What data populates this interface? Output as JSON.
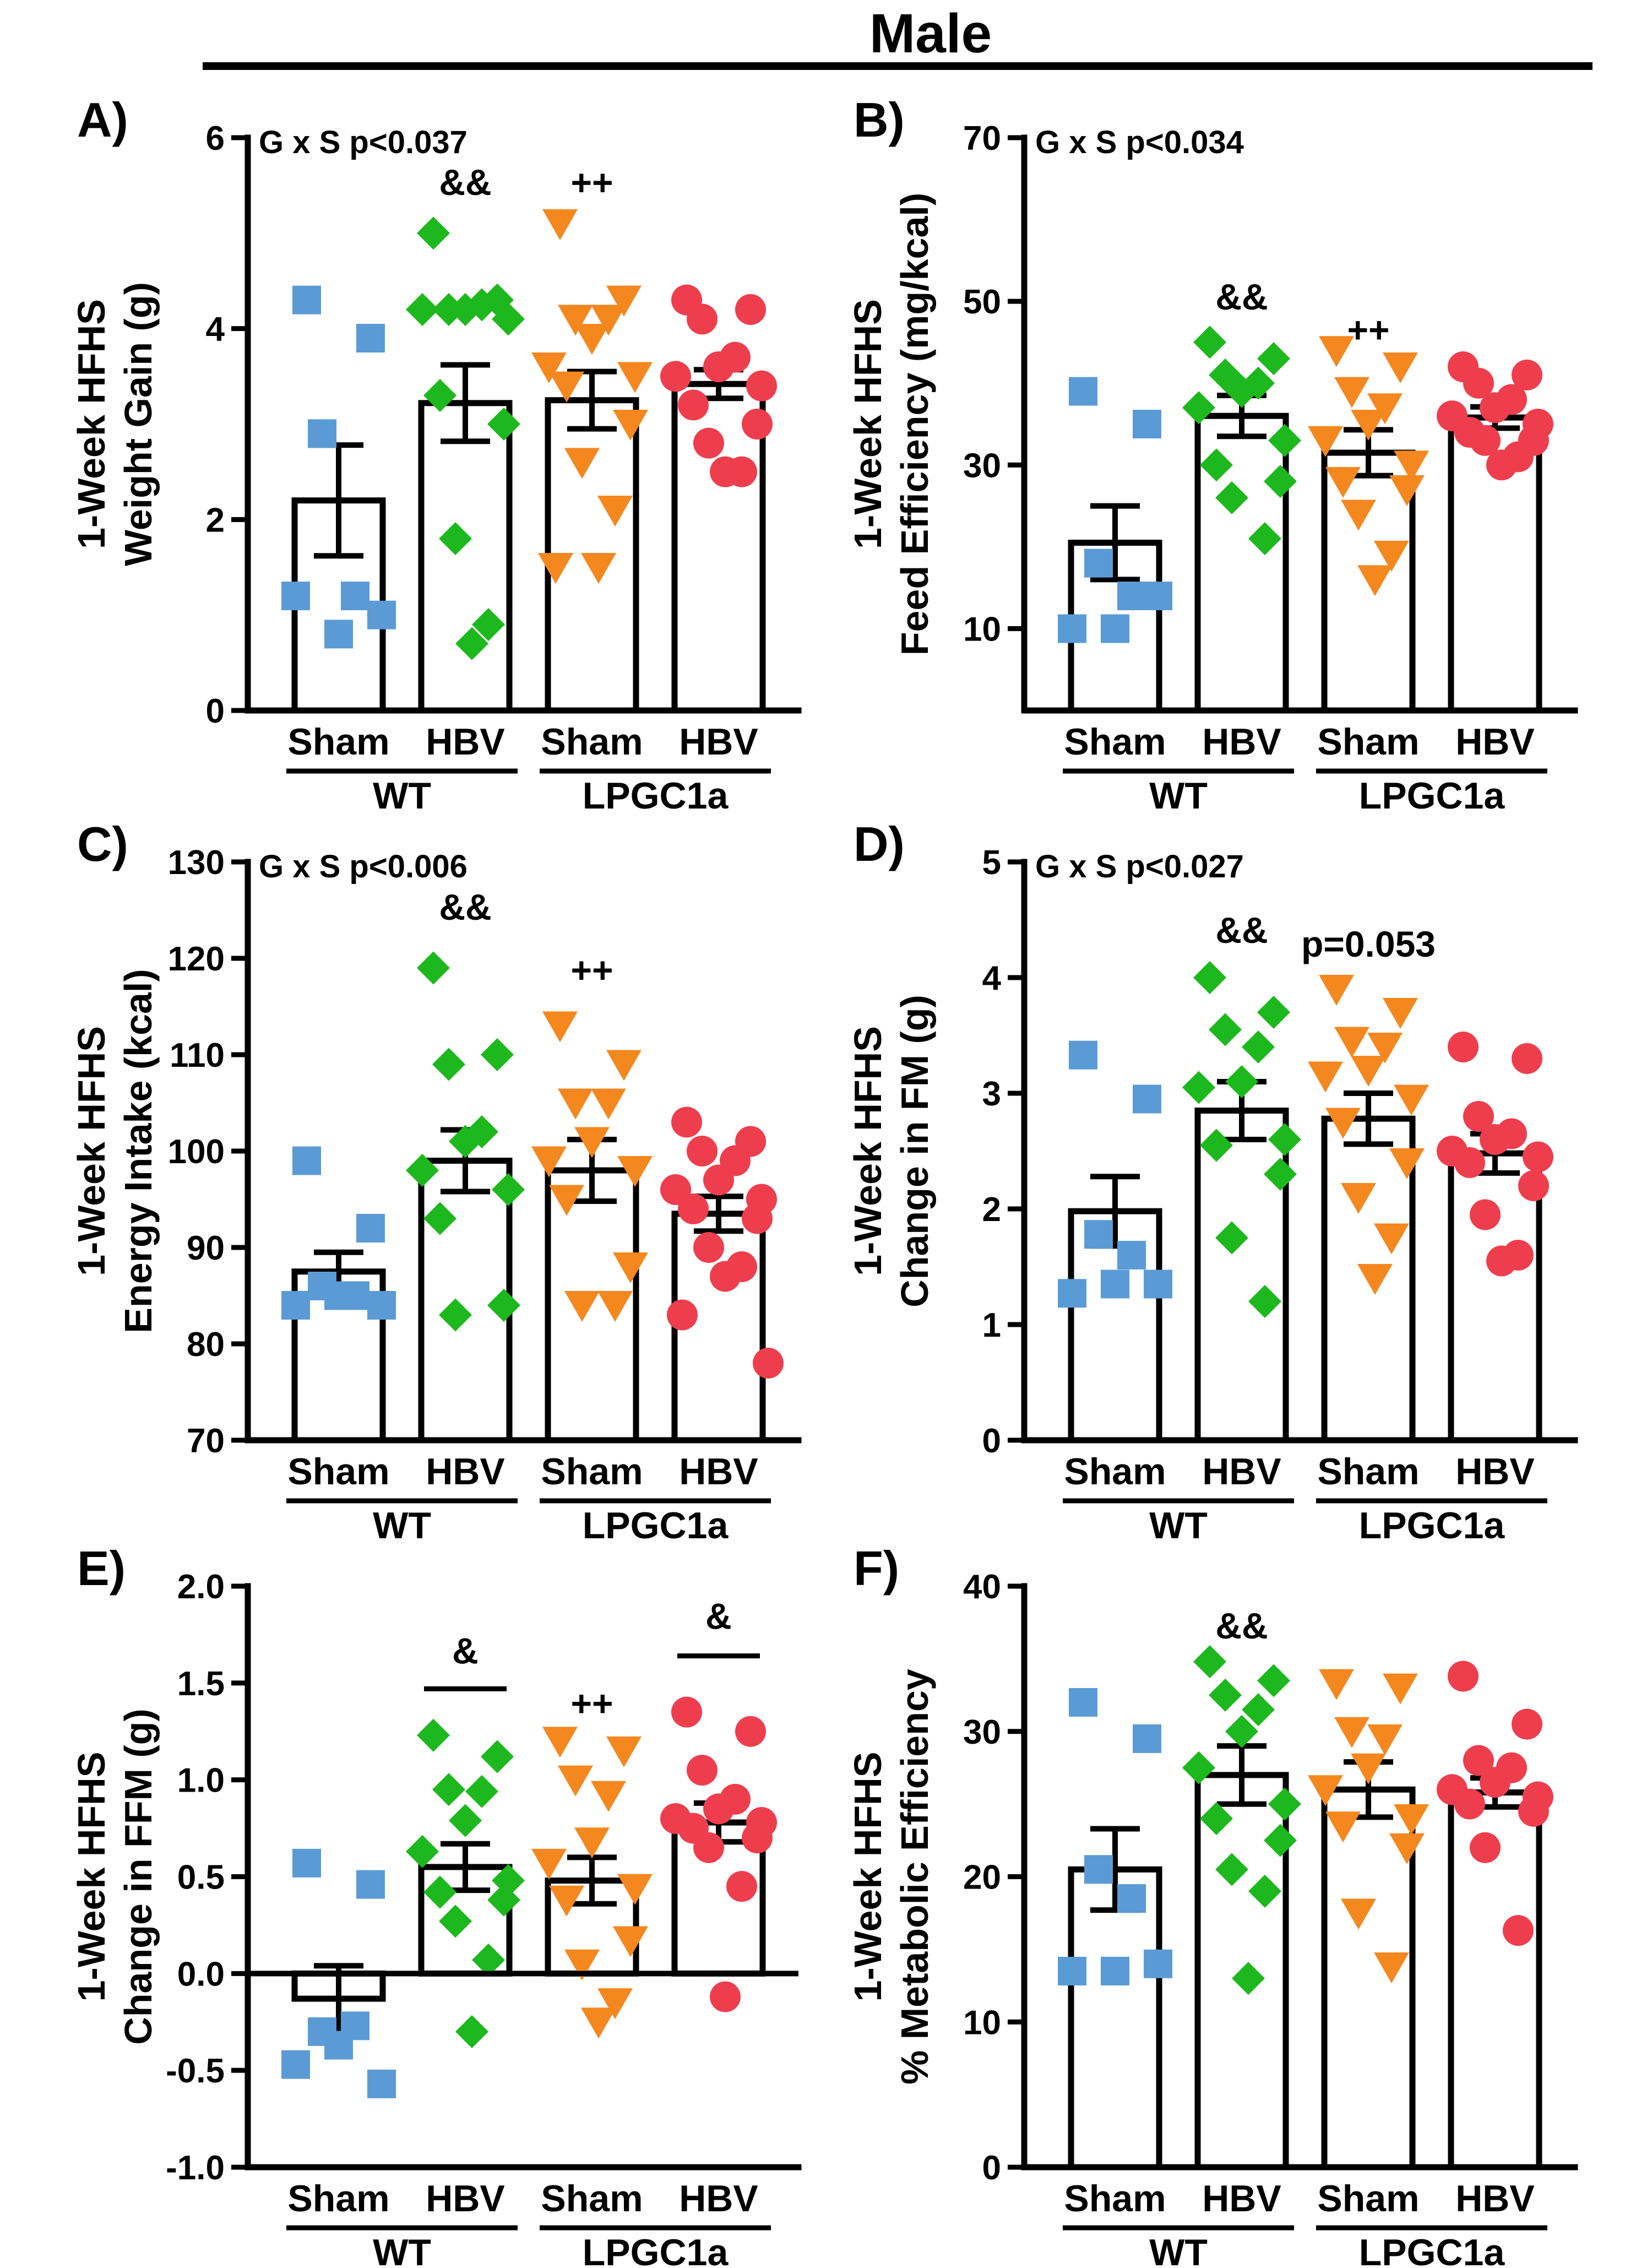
{
  "figure_title": "Male",
  "categories": [
    "Sham",
    "HBV",
    "Sham",
    "HBV"
  ],
  "groups": [
    "WT",
    "LPGC1a"
  ],
  "series_colors": [
    "#5B9BD5",
    "#1DB81D",
    "#F5871F",
    "#EE3E4E"
  ],
  "series_markers": [
    "square",
    "diamond",
    "triangle-down",
    "circle"
  ],
  "chart_data": [
    {
      "type": "bar",
      "letter": "A)",
      "title": "",
      "ylabel_lines": [
        "1-Week HFHS",
        "Weight Gain  (g)"
      ],
      "ylim": [
        0,
        6
      ],
      "yticks": [
        0,
        2,
        4,
        6
      ],
      "stat": "G x S p<0.037",
      "categories": [
        "Sham",
        "HBV",
        "Sham",
        "HBV"
      ],
      "groups": [
        "WT",
        "LPGC1a"
      ],
      "means": [
        2.2,
        3.22,
        3.25,
        3.42
      ],
      "sems": [
        0.58,
        0.4,
        0.3,
        0.15
      ],
      "points": [
        [
          4.3,
          3.9,
          2.9,
          1.2,
          0.8,
          1.2,
          1.0
        ],
        [
          5.0,
          4.3,
          4.2,
          4.25,
          4.2,
          4.2,
          4.1,
          3.3,
          3.0,
          1.8,
          0.9,
          0.7
        ],
        [
          5.1,
          4.3,
          4.1,
          4.1,
          3.9,
          3.6,
          3.5,
          3.4,
          3.0,
          2.6,
          2.1,
          1.5,
          1.5
        ],
        [
          4.3,
          4.2,
          4.1,
          3.7,
          3.6,
          3.5,
          3.4,
          3.2,
          3.0,
          2.8,
          2.5,
          2.5
        ]
      ],
      "marks": [
        {
          "category_index": 1,
          "text": "&&",
          "y": 5.4
        },
        {
          "category_index": 2,
          "text": "++",
          "y": 5.4
        }
      ]
    },
    {
      "type": "bar",
      "letter": "B)",
      "title": "",
      "ylabel_lines": [
        "1-Week HFHS",
        "Feed Efficiency (mg/kcal)"
      ],
      "ylim": [
        0,
        70
      ],
      "yticks": [
        10,
        30,
        50,
        70
      ],
      "stat": "G x S p<0.034",
      "categories": [
        "Sham",
        "HBV",
        "Sham",
        "HBV"
      ],
      "groups": [
        "WT",
        "LPGC1a"
      ],
      "means": [
        20.5,
        36,
        31.5,
        35.8
      ],
      "sems": [
        4.5,
        2.5,
        2.8,
        1.3
      ],
      "points": [
        [
          39,
          35,
          18,
          14,
          10,
          10,
          14
        ],
        [
          45,
          43,
          41,
          40,
          39,
          37,
          33,
          30,
          28,
          26,
          21
        ],
        [
          44,
          42,
          39,
          37,
          35,
          33,
          30,
          28,
          27,
          24,
          19,
          16
        ],
        [
          42,
          41,
          40,
          38,
          37,
          36,
          35,
          34,
          33,
          33,
          31,
          30
        ]
      ],
      "marks": [
        {
          "category_index": 1,
          "text": "&&",
          "y": 49
        },
        {
          "category_index": 2,
          "text": "++",
          "y": 45
        }
      ]
    },
    {
      "type": "bar",
      "letter": "C)",
      "title": "",
      "ylabel_lines": [
        "1-Week HFHS",
        "Energy Intake (kcal)"
      ],
      "ylim": [
        70,
        130
      ],
      "yticks": [
        70,
        80,
        90,
        100,
        110,
        120,
        130
      ],
      "stat": "G x S p<0.006",
      "categories": [
        "Sham",
        "HBV",
        "Sham",
        "HBV"
      ],
      "groups": [
        "WT",
        "LPGC1a"
      ],
      "means": [
        87.5,
        99,
        98,
        93.5
      ],
      "sems": [
        2.0,
        3.2,
        3.2,
        1.8
      ],
      "points": [
        [
          99,
          92,
          86,
          85,
          85,
          84,
          84
        ],
        [
          119,
          110,
          109,
          102,
          101,
          98,
          96,
          93,
          84,
          83
        ],
        [
          113,
          109,
          105,
          105,
          101,
          99,
          98,
          95,
          88,
          84,
          84
        ],
        [
          103,
          101,
          100,
          99,
          97,
          96,
          95,
          94,
          93,
          90,
          88,
          87,
          83,
          78
        ]
      ],
      "marks": [
        {
          "category_index": 1,
          "text": "&&",
          "y": 124
        },
        {
          "category_index": 2,
          "text": "++",
          "y": 117.5
        }
      ]
    },
    {
      "type": "bar",
      "letter": "D)",
      "title": "",
      "ylabel_lines": [
        "1-Week HFHS",
        "Change in FM (g)"
      ],
      "ylim": [
        0,
        5
      ],
      "yticks": [
        0,
        1,
        2,
        3,
        4,
        5
      ],
      "stat": "G x S p<0.027",
      "categories": [
        "Sham",
        "HBV",
        "Sham",
        "HBV"
      ],
      "groups": [
        "WT",
        "LPGC1a"
      ],
      "means": [
        1.98,
        2.85,
        2.78,
        2.48
      ],
      "sems": [
        0.3,
        0.25,
        0.22,
        0.17
      ],
      "points": [
        [
          3.33,
          2.95,
          1.78,
          1.6,
          1.35,
          1.27,
          1.35
        ],
        [
          4.0,
          3.7,
          3.55,
          3.4,
          3.1,
          3.05,
          2.6,
          2.55,
          2.3,
          1.75,
          1.2
        ],
        [
          3.9,
          3.7,
          3.45,
          3.4,
          3.2,
          3.15,
          2.95,
          2.75,
          2.4,
          2.1,
          1.75,
          1.4
        ],
        [
          3.4,
          3.3,
          2.8,
          2.65,
          2.6,
          2.5,
          2.45,
          2.4,
          2.2,
          1.95,
          1.6,
          1.55
        ]
      ],
      "marks": [
        {
          "category_index": 1,
          "text": "&&",
          "y": 4.3
        },
        {
          "category_index": 2,
          "text": "p=0.053",
          "y": 4.18
        }
      ]
    },
    {
      "type": "bar",
      "letter": "E)",
      "title": "",
      "ylabel_lines": [
        "1-Week HFHS",
        "Change in FFM (g)"
      ],
      "ylim": [
        -1.0,
        2.0
      ],
      "yticks": [
        -1.0,
        -0.5,
        0.0,
        0.5,
        1.0,
        1.5,
        2.0
      ],
      "stat": "",
      "categories": [
        "Sham",
        "HBV",
        "Sham",
        "HBV"
      ],
      "groups": [
        "WT",
        "LPGC1a"
      ],
      "means": [
        -0.13,
        0.55,
        0.48,
        0.78
      ],
      "sems": [
        0.17,
        0.12,
        0.12,
        0.1
      ],
      "points": [
        [
          0.57,
          0.46,
          -0.3,
          -0.27,
          -0.37,
          -0.47,
          -0.57
        ],
        [
          1.23,
          1.12,
          0.95,
          0.94,
          0.79,
          0.63,
          0.48,
          0.42,
          0.38,
          0.27,
          0.07,
          -0.3
        ],
        [
          1.2,
          1.15,
          1.0,
          0.92,
          0.68,
          0.57,
          0.44,
          0.38,
          0.17,
          0.05,
          -0.15,
          -0.25
        ],
        [
          1.35,
          1.25,
          1.05,
          0.9,
          0.85,
          0.8,
          0.78,
          0.75,
          0.7,
          0.65,
          0.45,
          -0.12
        ]
      ],
      "marks": [
        {
          "category_index": 1,
          "text": "&",
          "y": 1.6,
          "bar": 1.47
        },
        {
          "category_index": 2,
          "text": "++",
          "y": 1.33
        },
        {
          "category_index": 3,
          "text": "&",
          "y": 1.78,
          "bar": 1.64
        }
      ]
    },
    {
      "type": "bar",
      "letter": "F)",
      "title": "",
      "ylabel_lines": [
        "1-Week HFHS",
        "% Metabolic Efficiency"
      ],
      "ylim": [
        0,
        40
      ],
      "yticks": [
        0,
        10,
        20,
        30,
        40
      ],
      "stat": "",
      "categories": [
        "Sham",
        "HBV",
        "Sham",
        "HBV"
      ],
      "groups": [
        "WT",
        "LPGC1a"
      ],
      "means": [
        20.5,
        27,
        26,
        25.8
      ],
      "sems": [
        2.8,
        2.0,
        1.9,
        1.0
      ],
      "points": [
        [
          32,
          29.5,
          20.5,
          18.5,
          13.5,
          13.5,
          14
        ],
        [
          34.8,
          33.5,
          32.5,
          31.5,
          30,
          27.5,
          25,
          24,
          22.5,
          20.5,
          19,
          13
        ],
        [
          33.3,
          33,
          30,
          29.5,
          27.5,
          26,
          24,
          23.5,
          22,
          17.5,
          13.8
        ],
        [
          33.8,
          30.5,
          28,
          27.5,
          26.5,
          26,
          25.5,
          25,
          24.5,
          22,
          16.3
        ]
      ],
      "marks": [
        {
          "category_index": 1,
          "text": "&&",
          "y": 36.4
        }
      ]
    }
  ]
}
